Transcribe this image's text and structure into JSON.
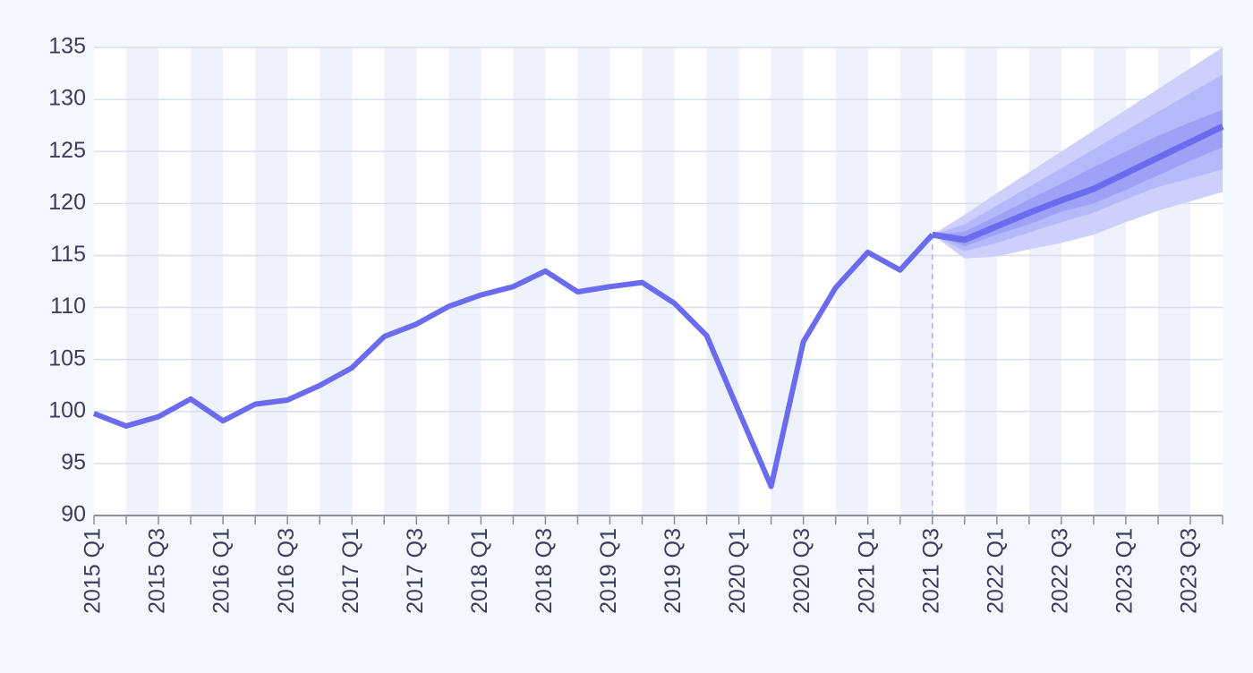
{
  "chart_data": {
    "type": "line",
    "categories": [
      "2015 Q1",
      null,
      "2015 Q3",
      null,
      "2016 Q1",
      null,
      "2016 Q3",
      null,
      "2017 Q1",
      null,
      "2017 Q3",
      null,
      "2018 Q1",
      null,
      "2018 Q3",
      null,
      "2019 Q1",
      null,
      "2019 Q3",
      null,
      "2020 Q1",
      null,
      "2020 Q3",
      null,
      "2021 Q1",
      null,
      "2021 Q3",
      null,
      "2022 Q1",
      null,
      "2022 Q3",
      null,
      "2023 Q1",
      null,
      "2023 Q3",
      null
    ],
    "series": [
      {
        "color": "#6b6bef",
        "values": [
          99.8,
          98.6,
          99.5,
          101.2,
          99.1,
          100.7,
          101.1,
          102.5,
          104.2,
          107.2,
          108.4,
          110.1,
          111.2,
          112.0,
          113.5,
          111.5,
          112.0,
          112.4,
          110.4,
          107.3,
          100.0,
          92.8,
          106.7,
          111.9,
          115.3,
          113.6,
          117.0,
          null,
          null,
          null,
          null,
          null,
          null,
          null,
          null,
          null
        ]
      },
      {
        "color": "#6b6bef",
        "values": [
          null,
          null,
          null,
          null,
          null,
          null,
          null,
          null,
          null,
          null,
          null,
          null,
          null,
          null,
          null,
          null,
          null,
          null,
          null,
          null,
          null,
          null,
          null,
          null,
          null,
          null,
          117.0,
          116.5,
          117.8,
          119.1,
          120.3,
          121.4,
          122.9,
          124.4,
          125.9,
          127.4
        ]
      }
    ],
    "bands": [
      {
        "color": "#ccd0fb",
        "upper": [
          null,
          null,
          null,
          null,
          null,
          null,
          null,
          null,
          null,
          null,
          null,
          null,
          null,
          null,
          null,
          null,
          null,
          null,
          null,
          null,
          null,
          null,
          null,
          null,
          null,
          null,
          117.0,
          118.9,
          121.0,
          123.0,
          125.0,
          127.0,
          129.0,
          131.0,
          133.0,
          135.0
        ],
        "lower": [
          null,
          null,
          null,
          null,
          null,
          null,
          null,
          null,
          null,
          null,
          null,
          null,
          null,
          null,
          null,
          null,
          null,
          null,
          null,
          null,
          null,
          null,
          null,
          null,
          null,
          null,
          117.0,
          114.7,
          114.9,
          115.6,
          116.2,
          117.0,
          118.2,
          119.3,
          120.2,
          121.1
        ]
      },
      {
        "color": "#b4b9fa",
        "upper": [
          null,
          null,
          null,
          null,
          null,
          null,
          null,
          null,
          null,
          null,
          null,
          null,
          null,
          null,
          null,
          null,
          null,
          null,
          null,
          null,
          null,
          null,
          null,
          null,
          null,
          null,
          117.0,
          118.0,
          119.8,
          121.6,
          123.4,
          125.2,
          127.0,
          128.8,
          130.6,
          132.4
        ],
        "lower": [
          null,
          null,
          null,
          null,
          null,
          null,
          null,
          null,
          null,
          null,
          null,
          null,
          null,
          null,
          null,
          null,
          null,
          null,
          null,
          null,
          null,
          null,
          null,
          null,
          null,
          null,
          117.0,
          115.4,
          116.2,
          117.2,
          118.2,
          119.1,
          120.4,
          121.6,
          122.4,
          123.3
        ]
      },
      {
        "color": "#9da2f7",
        "upper": [
          null,
          null,
          null,
          null,
          null,
          null,
          null,
          null,
          null,
          null,
          null,
          null,
          null,
          null,
          null,
          null,
          null,
          null,
          null,
          null,
          null,
          null,
          null,
          null,
          null,
          null,
          117.0,
          117.3,
          118.8,
          120.4,
          121.9,
          123.5,
          125.0,
          126.5,
          127.8,
          129.0
        ],
        "lower": [
          null,
          null,
          null,
          null,
          null,
          null,
          null,
          null,
          null,
          null,
          null,
          null,
          null,
          null,
          null,
          null,
          null,
          null,
          null,
          null,
          null,
          null,
          null,
          null,
          null,
          null,
          117.0,
          115.9,
          117.0,
          118.0,
          119.2,
          120.0,
          121.3,
          122.7,
          124.1,
          125.4
        ]
      }
    ],
    "ylim": [
      90,
      135
    ],
    "yticks": [
      90,
      95,
      100,
      105,
      110,
      115,
      120,
      125,
      130,
      135
    ],
    "grid": true
  }
}
